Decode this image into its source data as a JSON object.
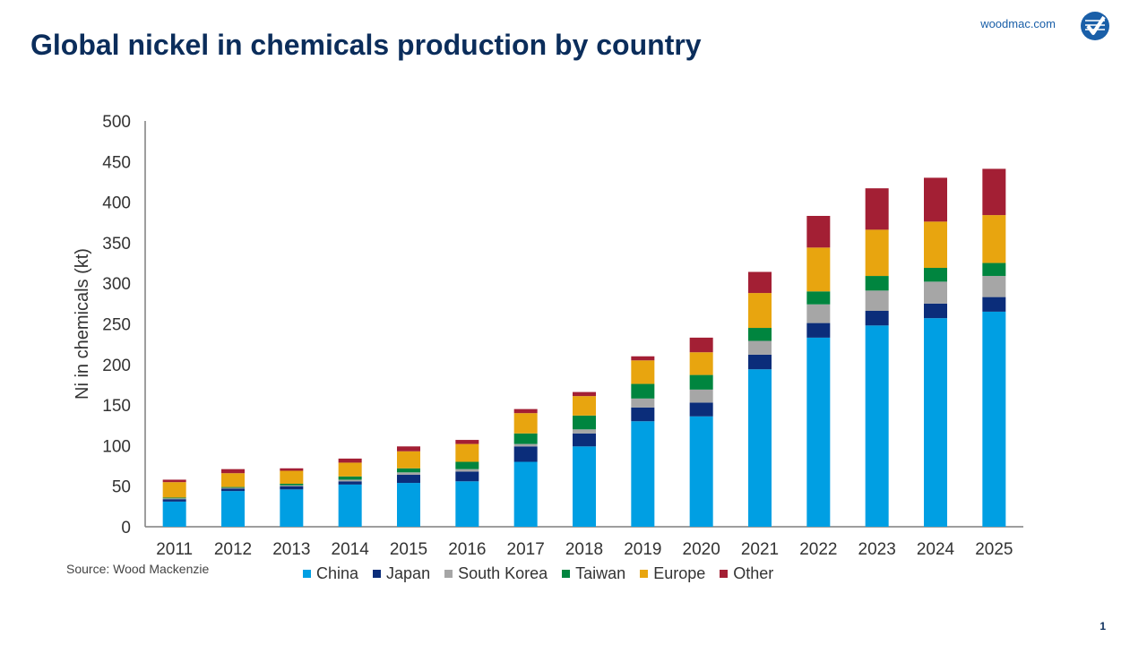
{
  "header": {
    "title": "Global nickel in chemicals production by country",
    "brand_url": "woodmac.com"
  },
  "footer": {
    "source": "Source: Wood Mackenzie",
    "page_number": "1"
  },
  "chart_data": {
    "type": "bar",
    "stacked": true,
    "title": "Global nickel in chemicals production by country",
    "xlabel": "",
    "ylabel": "Ni in chemicals (kt)",
    "ylim": [
      0,
      500
    ],
    "yticks": [
      0,
      50,
      100,
      150,
      200,
      250,
      300,
      350,
      400,
      450,
      500
    ],
    "grid": false,
    "legend_position": "bottom",
    "categories": [
      "2011",
      "2012",
      "2013",
      "2014",
      "2015",
      "2016",
      "2017",
      "2018",
      "2019",
      "2020",
      "2021",
      "2022",
      "2023",
      "2024",
      "2025"
    ],
    "series": [
      {
        "name": "China",
        "color": "#009fe3",
        "values": [
          31,
          44,
          46,
          52,
          54,
          56,
          80,
          99,
          130,
          136,
          194,
          233,
          248,
          257,
          265
        ]
      },
      {
        "name": "Japan",
        "color": "#0b2d7a",
        "values": [
          3,
          3,
          4,
          4,
          10,
          12,
          19,
          16,
          17,
          17,
          18,
          18,
          18,
          18,
          18
        ]
      },
      {
        "name": "South Korea",
        "color": "#a6a6a6",
        "values": [
          1,
          1,
          1,
          2,
          3,
          3,
          3,
          5,
          11,
          16,
          17,
          23,
          25,
          27,
          26
        ]
      },
      {
        "name": "Taiwan",
        "color": "#00853f",
        "values": [
          1,
          1,
          2,
          4,
          5,
          9,
          13,
          17,
          18,
          18,
          16,
          16,
          18,
          17,
          16
        ]
      },
      {
        "name": "Europe",
        "color": "#e8a50f",
        "values": [
          19,
          17,
          16,
          17,
          21,
          22,
          25,
          24,
          29,
          28,
          43,
          54,
          57,
          57,
          59
        ]
      },
      {
        "name": "Other",
        "color": "#a31f34",
        "values": [
          3,
          5,
          3,
          5,
          6,
          5,
          5,
          5,
          5,
          18,
          26,
          39,
          51,
          54,
          57
        ]
      }
    ]
  }
}
